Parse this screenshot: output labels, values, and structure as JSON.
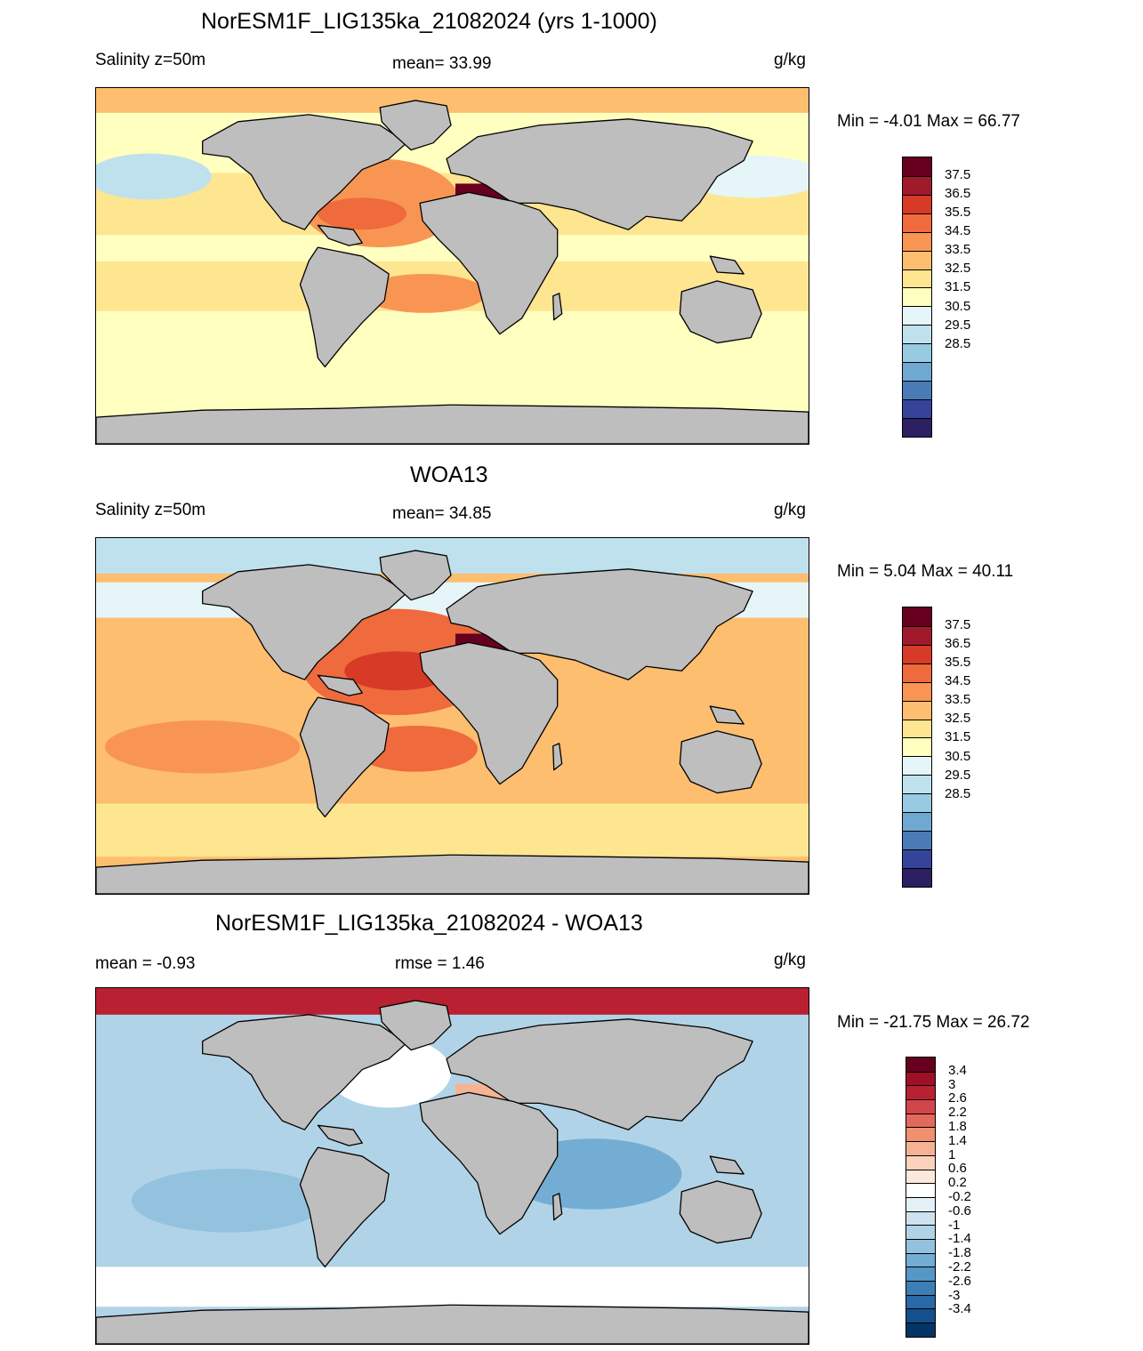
{
  "panels": [
    {
      "title": "NorESM1F_LIG135ka_21082024 (yrs 1-1000)",
      "left_label": "Salinity z=50m",
      "center_label": "mean=  33.99",
      "units": "g/kg",
      "minmax": "Min =  -4.01 Max =  66.77",
      "ticks": [
        "37.5",
        "36.5",
        "35.5",
        "34.5",
        "33.5",
        "32.5",
        "31.5",
        "30.5",
        "29.5",
        "28.5"
      ]
    },
    {
      "title": "WOA13",
      "left_label": "Salinity z=50m",
      "center_label": "mean=  34.85",
      "units": "g/kg",
      "minmax": "Min =   5.04 Max =  40.11",
      "ticks": [
        "37.5",
        "36.5",
        "35.5",
        "34.5",
        "33.5",
        "32.5",
        "31.5",
        "30.5",
        "29.5",
        "28.5"
      ]
    },
    {
      "title": "NorESM1F_LIG135ka_21082024 - WOA13",
      "left_label": "mean =  -0.93",
      "center_label": "rmse =   1.46",
      "units": "g/kg",
      "minmax": "Min = -21.75 Max =  26.72",
      "ticks": [
        "3.4",
        "3",
        "2.6",
        "2.2",
        "1.8",
        "1.4",
        "1",
        "0.6",
        "0.2",
        "-0.2",
        "-0.6",
        "-1",
        "-1.4",
        "-1.8",
        "-2.2",
        "-2.6",
        "-3",
        "-3.4"
      ]
    }
  ],
  "colors": {
    "salinity_scale": [
      "#67001f",
      "#a11a2c",
      "#d73b27",
      "#ef6a3c",
      "#f99553",
      "#fdbe6f",
      "#fee590",
      "#ffffc0",
      "#e6f5f8",
      "#bfe1ee",
      "#98cbe2",
      "#6fa9d2",
      "#4a7bb7",
      "#35449a",
      "#2c2062"
    ],
    "diff_scale": [
      "#67001f",
      "#9f0f26",
      "#b92132",
      "#d2464b",
      "#e26a5a",
      "#ef906f",
      "#f6b394",
      "#fbd2bb",
      "#fde9dc",
      "#ffffff",
      "#e5f0f6",
      "#cde3ef",
      "#b1d3e7",
      "#93c2de",
      "#74add3",
      "#5597c6",
      "#3c7fb6",
      "#2a68a6",
      "#14508d",
      "#043466"
    ],
    "land": "#bebebe"
  }
}
